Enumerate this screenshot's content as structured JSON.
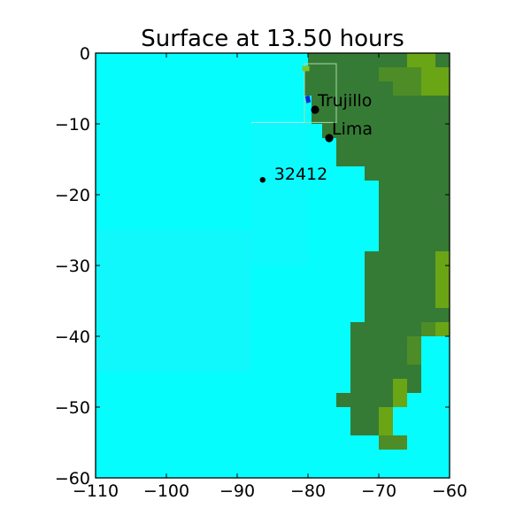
{
  "chart_data": {
    "type": "heatmap",
    "title": "Surface at 13.50 hours",
    "xlabel": "",
    "ylabel": "",
    "xlim": [
      -110,
      -60
    ],
    "ylim": [
      -60,
      0
    ],
    "xticks": [
      -110,
      -100,
      -90,
      -80,
      -70,
      -60
    ],
    "yticks": [
      0,
      -10,
      -20,
      -30,
      -40,
      -50,
      -60
    ],
    "xtick_labels": [
      "−110",
      "−100",
      "−90",
      "−80",
      "−70",
      "−60"
    ],
    "ytick_labels": [
      "0",
      "−10",
      "−20",
      "−30",
      "−40",
      "−50",
      "−60"
    ],
    "grid": false,
    "colors": {
      "ocean": "#06fdfd",
      "ocean_shade": "#19f3fb",
      "land": "#357b35",
      "land_highland": "#4e8c28",
      "land_peak": "#6aa516",
      "surge": "#0a28d8",
      "marker": "#000000"
    },
    "annotations": [
      {
        "label": "Trujillo",
        "lon": -79.0,
        "lat": -8.0,
        "marker": "large-dot"
      },
      {
        "label": "Lima",
        "lon": -77.0,
        "lat": -12.0,
        "marker": "large-dot"
      },
      {
        "label": "32412",
        "lon": -86.4,
        "lat": -17.9,
        "marker": "small-dot"
      }
    ],
    "land_cells": [
      {
        "lon1": -80.0,
        "lon2": -60,
        "lat1": -2,
        "lat2": 0
      },
      {
        "lon1": -80.5,
        "lon2": -60,
        "lat1": -6,
        "lat2": -2
      },
      {
        "lon1": -79.5,
        "lon2": -60,
        "lat1": -10,
        "lat2": -6
      },
      {
        "lon1": -78.0,
        "lon2": -60,
        "lat1": -12,
        "lat2": -10
      },
      {
        "lon1": -76.0,
        "lon2": -60,
        "lat1": -16,
        "lat2": -12
      },
      {
        "lon1": -72.0,
        "lon2": -60,
        "lat1": -18,
        "lat2": -16
      },
      {
        "lon1": -70.0,
        "lon2": -60,
        "lat1": -28,
        "lat2": -18
      },
      {
        "lon1": -72.0,
        "lon2": -60,
        "lat1": -38,
        "lat2": -28
      },
      {
        "lon1": -74.0,
        "lon2": -60,
        "lat1": -40,
        "lat2": -38
      },
      {
        "lon1": -74.0,
        "lon2": -64,
        "lat1": -48,
        "lat2": -40
      },
      {
        "lon1": -76.0,
        "lon2": -66,
        "lat1": -50,
        "lat2": -48
      },
      {
        "lon1": -74.0,
        "lon2": -68,
        "lat1": -54,
        "lat2": -50
      },
      {
        "lon1": -70.0,
        "lon2": -68,
        "lat1": -56,
        "lat2": -54
      }
    ],
    "highland_cells": [
      {
        "lon": -70,
        "lat": -2,
        "w": 2,
        "h": 2,
        "tone": "land_highland"
      },
      {
        "lon": -68,
        "lat": -2,
        "w": 2,
        "h": 2,
        "tone": "land_highland"
      },
      {
        "lon": -66,
        "lat": 0,
        "w": 4,
        "h": 2,
        "tone": "land_peak"
      },
      {
        "lon": -64,
        "lat": -2,
        "w": 4,
        "h": 4,
        "tone": "land_peak"
      },
      {
        "lon": -66,
        "lat": -2,
        "w": 2,
        "h": 4,
        "tone": "land_highland"
      },
      {
        "lon": -68,
        "lat": -4,
        "w": 2,
        "h": 2,
        "tone": "land_highland"
      },
      {
        "lon": -62,
        "lat": -28,
        "w": 2,
        "h": 8,
        "tone": "land_peak"
      },
      {
        "lon": -64,
        "lat": -38,
        "w": 2,
        "h": 2,
        "tone": "land_highland"
      },
      {
        "lon": -62,
        "lat": -38,
        "w": 2,
        "h": 2,
        "tone": "land_peak"
      },
      {
        "lon": -66,
        "lat": -40,
        "w": 2,
        "h": 4,
        "tone": "land_highland"
      },
      {
        "lon": -68,
        "lat": -46,
        "w": 2,
        "h": 4,
        "tone": "land_peak"
      },
      {
        "lon": -70,
        "lat": -50,
        "w": 2,
        "h": 4,
        "tone": "land_peak"
      },
      {
        "lon": -70,
        "lat": -54,
        "w": 2,
        "h": 2,
        "tone": "land_highland"
      },
      {
        "lon": -68,
        "lat": -54,
        "w": 2,
        "h": 2,
        "tone": "land_highland"
      }
    ]
  }
}
